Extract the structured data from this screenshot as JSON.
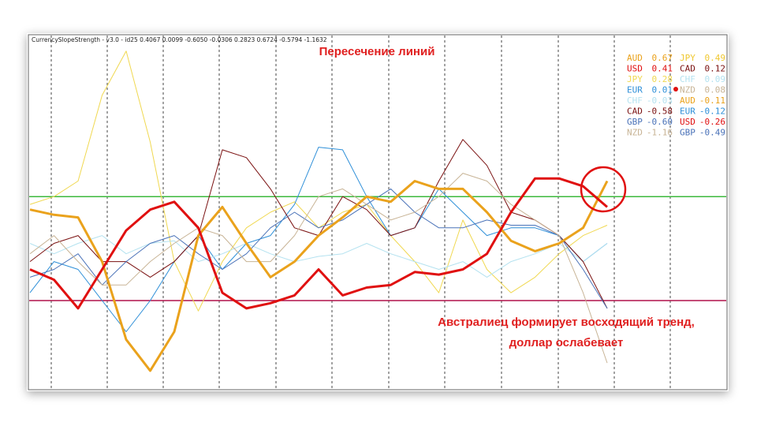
{
  "chart_data": {
    "type": "line",
    "header": "CurrencySlopeStrength - v3.0 - id25 0.4067 0.0099 -0.6050 -0.0306 0.2823 0.6724 -0.5794 -1.1632",
    "title": "Пересечение линий",
    "annotation": [
      "Австралиец формирует восходящий тренд,",
      "доллар ослабевает"
    ],
    "ylim": [
      -0.54,
      0.82
    ],
    "levels": [
      {
        "value": 0.2,
        "color": "#3cb83c"
      },
      {
        "value": -0.2,
        "color": "#b0104a"
      }
    ],
    "series": [
      {
        "name": "AUD",
        "current": "0.67",
        "color": "#eaa21c",
        "width": 3,
        "values": [
          0.15,
          0.13,
          0.12,
          -0.05,
          -0.35,
          -0.47,
          -0.32,
          0.05,
          0.16,
          0.02,
          -0.11,
          -0.05,
          0.05,
          0.12,
          0.2,
          0.18,
          0.26,
          0.23,
          0.23,
          0.14,
          0.03,
          -0.01,
          0.02,
          0.08,
          0.26
        ]
      },
      {
        "name": "USD",
        "current": "0.41",
        "color": "#e01010",
        "width": 3,
        "values": [
          -0.08,
          -0.12,
          -0.23,
          -0.08,
          0.07,
          0.15,
          0.18,
          0.08,
          -0.17,
          -0.23,
          -0.21,
          -0.18,
          -0.08,
          -0.18,
          -0.15,
          -0.14,
          -0.09,
          -0.1,
          -0.08,
          -0.02,
          0.14,
          0.27,
          0.27,
          0.24,
          0.16
        ]
      },
      {
        "name": "JPY",
        "current": "0.28",
        "color": "#f0d850",
        "width": 1,
        "values": [
          0.17,
          0.2,
          0.26,
          0.59,
          0.76,
          0.41,
          -0.05,
          -0.24,
          -0.05,
          0.08,
          0.14,
          0.18,
          0.08,
          0.14,
          0.17,
          0.05,
          -0.05,
          -0.17,
          0.11,
          -0.08,
          -0.17,
          -0.11,
          -0.02,
          0.05,
          0.09
        ]
      },
      {
        "name": "EUR",
        "current": "0.01",
        "color": "#2e8fd8",
        "width": 1,
        "values": [
          -0.17,
          -0.05,
          -0.08,
          -0.2,
          -0.32,
          -0.2,
          -0.05,
          0.05,
          -0.08,
          0.02,
          0.05,
          0.17,
          0.39,
          0.38,
          0.2,
          0.05,
          0.08,
          0.23,
          0.14,
          0.05,
          0.08,
          0.08,
          0.05,
          -0.05,
          0.02
        ]
      },
      {
        "name": "CHF",
        "current": "-0.03",
        "color": "#b4e2f0",
        "width": 1,
        "values": [
          0.02,
          -0.02,
          0.02,
          0.05,
          -0.02,
          0.02,
          0.03,
          -0.05,
          -0.02,
          0.02,
          -0.02,
          -0.05,
          -0.03,
          -0.02,
          0.02,
          -0.02,
          -0.05,
          -0.08,
          -0.05,
          -0.11,
          -0.05,
          -0.02,
          0.02,
          -0.05,
          0.02
        ]
      },
      {
        "name": "CAD",
        "current": "-0.58",
        "color": "#7a1010",
        "width": 1,
        "values": [
          -0.05,
          0.02,
          0.05,
          -0.05,
          -0.05,
          -0.11,
          -0.05,
          0.05,
          0.38,
          0.35,
          0.23,
          0.08,
          0.05,
          0.2,
          0.15,
          0.05,
          0.08,
          0.26,
          0.42,
          0.32,
          0.14,
          0.11,
          0.05,
          -0.05,
          -0.23
        ]
      },
      {
        "name": "GBP",
        "current": "-0.60",
        "color": "#4a72b8",
        "width": 1,
        "values": [
          -0.11,
          -0.08,
          -0.02,
          -0.14,
          -0.05,
          0.02,
          0.05,
          -0.02,
          -0.08,
          -0.02,
          0.08,
          0.14,
          0.08,
          0.11,
          0.17,
          0.23,
          0.14,
          0.08,
          0.08,
          0.11,
          0.09,
          0.09,
          0.05,
          -0.08,
          -0.23
        ]
      },
      {
        "name": "NZD",
        "current": "-1.16",
        "color": "#c8b496",
        "width": 1,
        "values": [
          -0.02,
          0.05,
          -0.05,
          -0.14,
          -0.14,
          -0.05,
          0.02,
          0.08,
          0.05,
          -0.05,
          -0.05,
          0.05,
          0.2,
          0.23,
          0.17,
          0.11,
          0.14,
          0.2,
          0.29,
          0.26,
          0.17,
          0.11,
          0.05,
          -0.17,
          -0.44
        ]
      }
    ],
    "legend_right": [
      {
        "name": "JPY",
        "value": "0.49",
        "color": "#f0c830"
      },
      {
        "name": "CAD",
        "value": "0.12",
        "color": "#7a1010"
      },
      {
        "name": "CHF",
        "value": "0.09",
        "color": "#b4e2f0"
      },
      {
        "name": "NZD",
        "value": "0.08",
        "color": "#c8b496"
      },
      {
        "name": "AUD",
        "value": "-0.11",
        "color": "#eaa21c"
      },
      {
        "name": "EUR",
        "value": "-0.12",
        "color": "#2e8fd8"
      },
      {
        "name": "USD",
        "value": "-0.26",
        "color": "#e01010"
      },
      {
        "name": "GBP",
        "value": "-0.49",
        "color": "#4a72b8"
      }
    ]
  }
}
